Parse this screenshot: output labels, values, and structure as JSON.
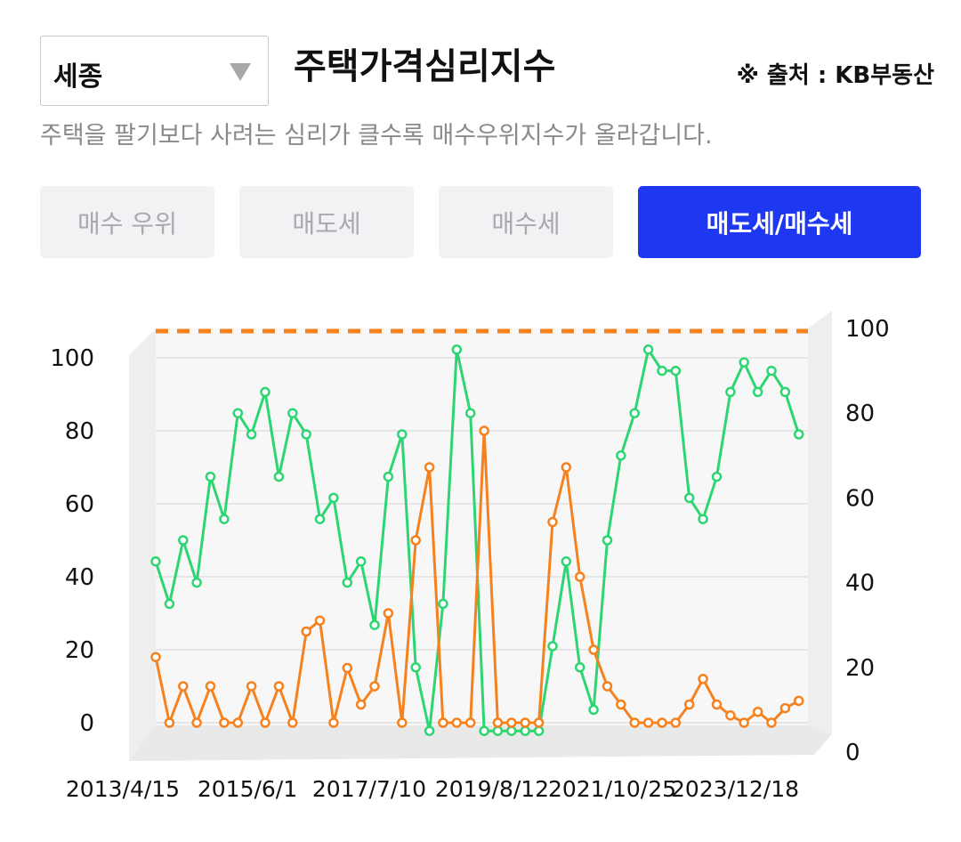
{
  "region_select": {
    "value": "세종"
  },
  "title": "주택가격심리지수",
  "source": "※ 출처 : KB부동산",
  "subtitle": "주택을 팔기보다 사려는 심리가 클수록 매수우위지수가 올라갑니다.",
  "tabs": [
    {
      "label": "매수 우위",
      "active": false
    },
    {
      "label": "매도세",
      "active": false
    },
    {
      "label": "매수세",
      "active": false
    },
    {
      "label": "매도세/매수세",
      "active": true
    }
  ],
  "colors": {
    "green_series": "#2ed573",
    "orange_series": "#f5821f",
    "accent": "#1e37f0",
    "reference_line": "#f5821f",
    "grid": "#e6e6e6"
  },
  "chart_data": {
    "type": "line",
    "title": "",
    "x_tick_labels": [
      "2013/4/15",
      "2015/6/1",
      "2017/7/10",
      "2019/8/12",
      "2021/10/25",
      "2023/12/18"
    ],
    "x_range": [
      "2013/1",
      "2024/12"
    ],
    "left_axis": {
      "ticks": [
        0,
        20,
        40,
        60,
        80,
        100
      ],
      "range": [
        0,
        100
      ]
    },
    "right_axis": {
      "ticks": [
        0,
        20,
        40,
        60,
        80,
        100
      ],
      "range": [
        0,
        100
      ]
    },
    "reference_line": {
      "value": 100,
      "axis": "right",
      "style": "dashed"
    },
    "grid": true,
    "legend": "none",
    "series": [
      {
        "color": "#2ed573",
        "axis": "right",
        "points": [
          [
            "2013/01",
            45
          ],
          [
            "2013/04",
            35
          ],
          [
            "2013/07",
            50
          ],
          [
            "2013/10",
            40
          ],
          [
            "2014/01",
            65
          ],
          [
            "2014/04",
            55
          ],
          [
            "2014/07",
            80
          ],
          [
            "2014/10",
            75
          ],
          [
            "2015/01",
            85
          ],
          [
            "2015/04",
            65
          ],
          [
            "2015/07",
            80
          ],
          [
            "2015/10",
            75
          ],
          [
            "2016/01",
            55
          ],
          [
            "2016/04",
            60
          ],
          [
            "2016/07",
            40
          ],
          [
            "2016/10",
            45
          ],
          [
            "2017/01",
            30
          ],
          [
            "2017/04",
            65
          ],
          [
            "2017/07",
            75
          ],
          [
            "2017/10",
            20
          ],
          [
            "2018/01",
            5
          ],
          [
            "2018/04",
            35
          ],
          [
            "2018/07",
            95
          ],
          [
            "2018/10",
            80
          ],
          [
            "2019/01",
            5
          ],
          [
            "2019/04",
            5
          ],
          [
            "2019/07",
            5
          ],
          [
            "2019/10",
            5
          ],
          [
            "2020/01",
            5
          ],
          [
            "2020/04",
            25
          ],
          [
            "2020/07",
            45
          ],
          [
            "2020/10",
            20
          ],
          [
            "2021/01",
            10
          ],
          [
            "2021/04",
            50
          ],
          [
            "2021/07",
            70
          ],
          [
            "2021/10",
            80
          ],
          [
            "2022/01",
            95
          ],
          [
            "2022/04",
            90
          ],
          [
            "2022/07",
            90
          ],
          [
            "2022/10",
            60
          ],
          [
            "2023/01",
            55
          ],
          [
            "2023/04",
            65
          ],
          [
            "2023/07",
            85
          ],
          [
            "2023/10",
            92
          ],
          [
            "2024/01",
            85
          ],
          [
            "2024/04",
            90
          ],
          [
            "2024/07",
            85
          ],
          [
            "2024/10",
            75
          ]
        ]
      },
      {
        "color": "#f5821f",
        "axis": "left",
        "points": [
          [
            "2013/01",
            18
          ],
          [
            "2013/04",
            0
          ],
          [
            "2013/07",
            10
          ],
          [
            "2013/10",
            0
          ],
          [
            "2014/01",
            10
          ],
          [
            "2014/04",
            0
          ],
          [
            "2014/07",
            0
          ],
          [
            "2014/10",
            10
          ],
          [
            "2015/01",
            0
          ],
          [
            "2015/04",
            10
          ],
          [
            "2015/07",
            0
          ],
          [
            "2015/10",
            25
          ],
          [
            "2016/01",
            28
          ],
          [
            "2016/04",
            0
          ],
          [
            "2016/07",
            15
          ],
          [
            "2016/10",
            5
          ],
          [
            "2017/01",
            10
          ],
          [
            "2017/04",
            30
          ],
          [
            "2017/07",
            0
          ],
          [
            "2017/10",
            50
          ],
          [
            "2018/01",
            70
          ],
          [
            "2018/04",
            0
          ],
          [
            "2018/07",
            0
          ],
          [
            "2018/10",
            0
          ],
          [
            "2019/01",
            80
          ],
          [
            "2019/04",
            0
          ],
          [
            "2019/07",
            0
          ],
          [
            "2019/10",
            0
          ],
          [
            "2020/01",
            0
          ],
          [
            "2020/04",
            55
          ],
          [
            "2020/07",
            70
          ],
          [
            "2020/10",
            40
          ],
          [
            "2021/01",
            20
          ],
          [
            "2021/04",
            10
          ],
          [
            "2021/07",
            5
          ],
          [
            "2021/10",
            0
          ],
          [
            "2022/01",
            0
          ],
          [
            "2022/04",
            0
          ],
          [
            "2022/07",
            0
          ],
          [
            "2022/10",
            5
          ],
          [
            "2023/01",
            12
          ],
          [
            "2023/04",
            5
          ],
          [
            "2023/07",
            2
          ],
          [
            "2023/10",
            0
          ],
          [
            "2024/01",
            3
          ],
          [
            "2024/04",
            0
          ],
          [
            "2024/07",
            4
          ],
          [
            "2024/10",
            6
          ]
        ]
      }
    ]
  }
}
